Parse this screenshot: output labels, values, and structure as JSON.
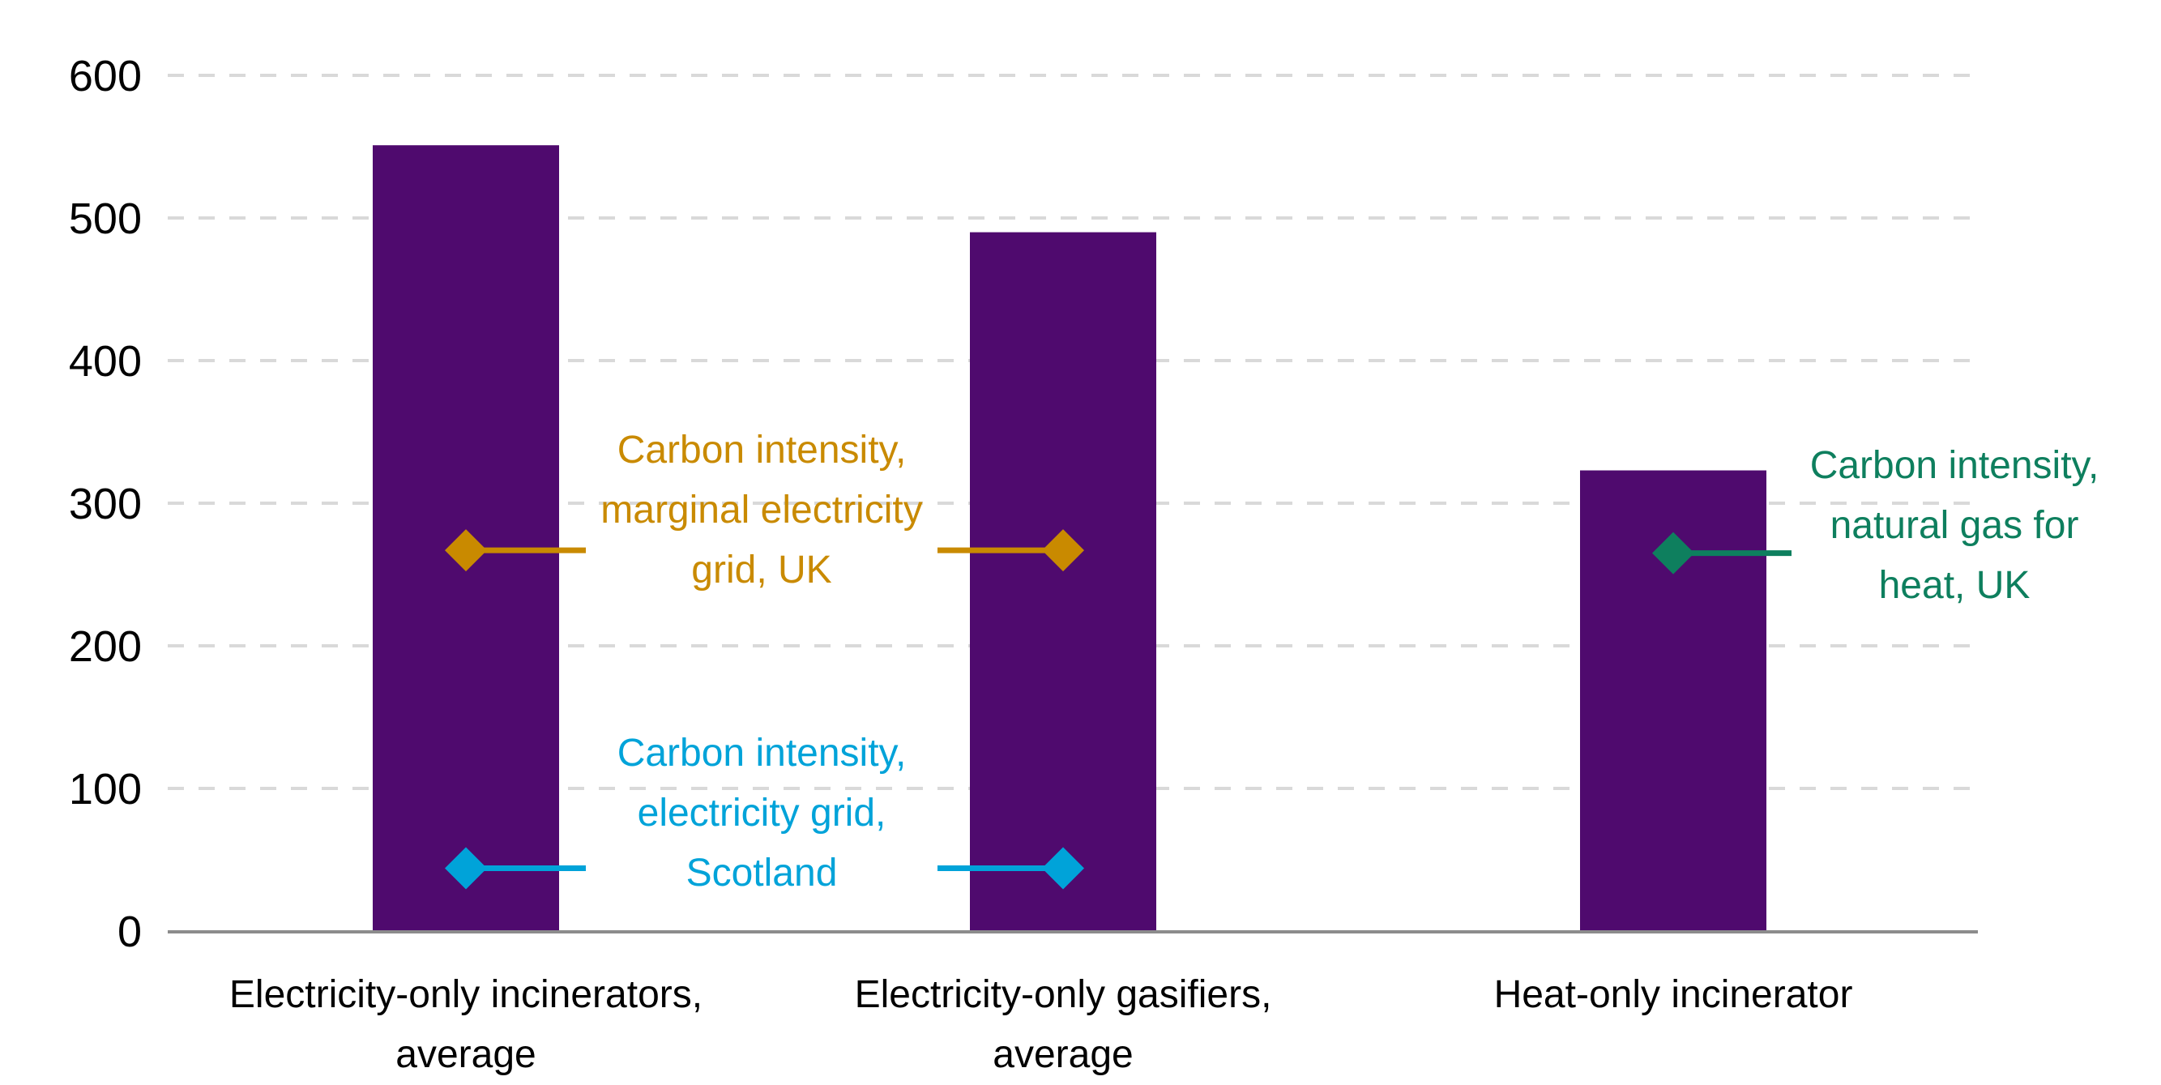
{
  "chart_data": {
    "type": "bar",
    "title": "",
    "xlabel": "",
    "ylabel": "",
    "ylim": [
      0,
      600
    ],
    "yticks": [
      "0",
      "100",
      "200",
      "300",
      "400",
      "500",
      "600"
    ],
    "grid": true,
    "categories": [
      [
        "Electricity-only incinerators,",
        "average"
      ],
      [
        "Electricity-only gasifiers,",
        "average"
      ],
      [
        "Heat-only incinerator"
      ]
    ],
    "values": [
      551,
      490,
      323
    ],
    "bar_color": "#4F0A6E",
    "reference_markers": [
      {
        "label": [
          "Carbon intensity,",
          "marginal electricity",
          "grid, UK"
        ],
        "value": 267,
        "categories": [
          0,
          1
        ],
        "color": "#C98A00"
      },
      {
        "label": [
          "Carbon intensity,",
          "electricity grid,",
          "Scotland"
        ],
        "value": 44,
        "categories": [
          0,
          1
        ],
        "color": "#00A3D9"
      },
      {
        "label": [
          "Carbon intensity,",
          "natural gas for",
          "heat, UK"
        ],
        "value": 265,
        "categories": [
          2
        ],
        "color": "#0E7F5E"
      }
    ]
  }
}
